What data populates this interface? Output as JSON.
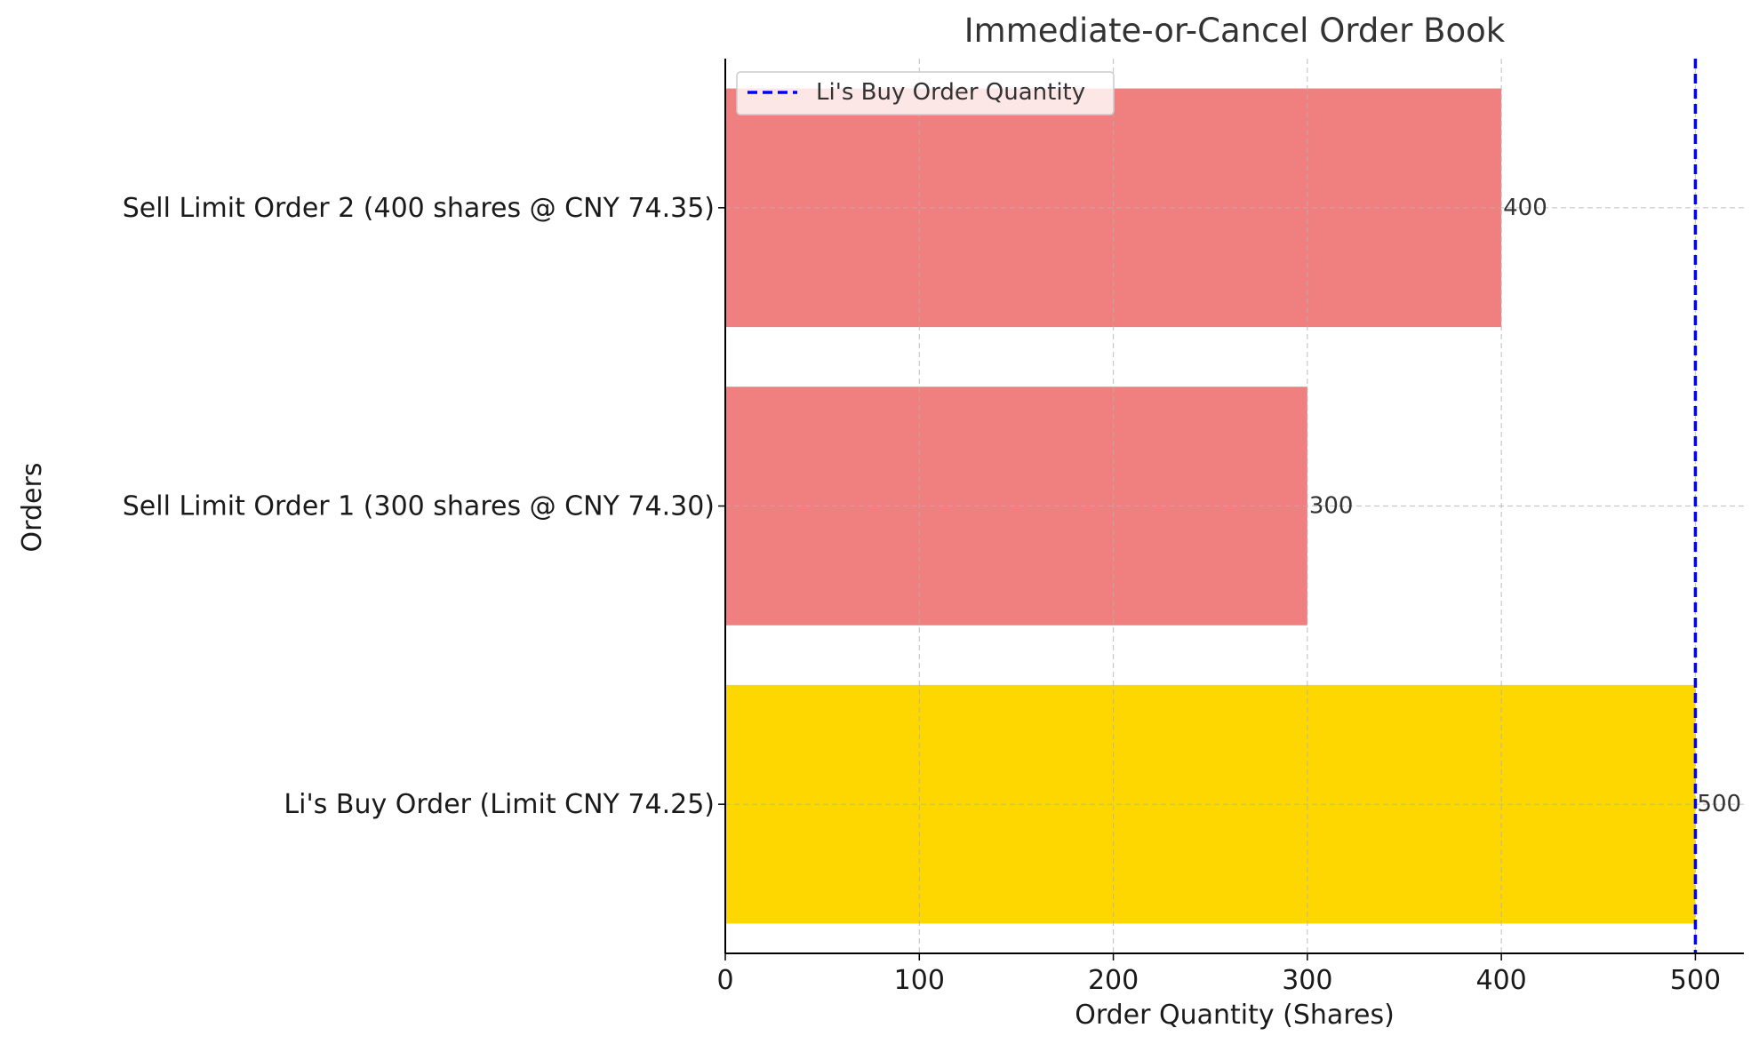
{
  "chart_data": {
    "type": "bar",
    "orientation": "horizontal",
    "title": "Immediate-or-Cancel Order Book",
    "xlabel": "Order Quantity (Shares)",
    "ylabel": "Orders",
    "categories": [
      "Li's Buy Order (Limit CNY 74.25)",
      "Sell Limit Order 1 (300 shares @ CNY 74.30)",
      "Sell Limit Order 2 (400 shares @ CNY 74.35)"
    ],
    "values": [
      500,
      300,
      400
    ],
    "data_labels": [
      "500",
      "300",
      "400"
    ],
    "bar_colors": [
      "#ffd700",
      "#f08080",
      "#f08080"
    ],
    "xlim": [
      0,
      525
    ],
    "xticks": [
      0,
      100,
      200,
      300,
      400,
      500
    ],
    "xtick_labels": [
      "0",
      "100",
      "200",
      "300",
      "400",
      "500"
    ],
    "grid": true,
    "reference_line": {
      "name": "Li's Buy Order Quantity",
      "x": 500,
      "color": "#0000ff",
      "style": "dashed"
    },
    "legend": {
      "position": "top-left",
      "entries": [
        "Li's Buy Order Quantity"
      ]
    }
  }
}
